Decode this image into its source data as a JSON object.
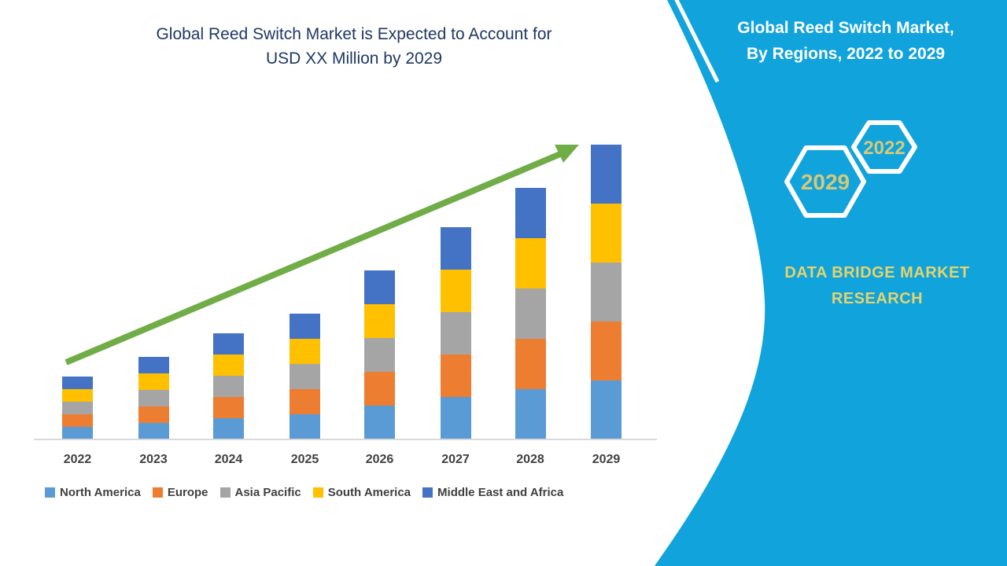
{
  "chart": {
    "title_line1": "Global Reed Switch Market is Expected to Account for",
    "title_line2": "USD XX Million by 2029"
  },
  "chart_data": {
    "type": "bar",
    "stacked": true,
    "title": "Global Reed Switch Market is Expected to Account for USD XX Million by 2029",
    "categories": [
      "2022",
      "2023",
      "2024",
      "2025",
      "2026",
      "2027",
      "2028",
      "2029"
    ],
    "series": [
      {
        "name": "North America",
        "color": "#5B9BD5",
        "values": [
          16,
          21,
          27,
          32,
          43,
          54,
          64,
          75
        ]
      },
      {
        "name": "Europe",
        "color": "#ED7D31",
        "values": [
          16,
          21,
          27,
          32,
          43,
          54,
          64,
          75
        ]
      },
      {
        "name": "Asia Pacific",
        "color": "#A5A5A5",
        "values": [
          16,
          21,
          27,
          32,
          43,
          54,
          64,
          75
        ]
      },
      {
        "name": "South America",
        "color": "#FFC000",
        "values": [
          16,
          21,
          27,
          32,
          43,
          54,
          64,
          75
        ]
      },
      {
        "name": "Middle East and Africa",
        "color": "#4472C4",
        "values": [
          16,
          21,
          27,
          32,
          43,
          54,
          64,
          75
        ]
      }
    ],
    "xlabel": "",
    "ylabel": "",
    "y_axis_shown": false,
    "grid": false,
    "legend_position": "bottom",
    "units": "relative (no value axis shown; chart uses placeholder 'USD XX Million')",
    "annotations": [
      "green upward trend arrow from 2022 bar to 2029 bar"
    ],
    "annotation_color": "#70AD47"
  },
  "sidebar": {
    "title_line1": "Global Reed Switch Market,",
    "title_line2": "By Regions, 2022 to 2029",
    "hexagon_large_label": "2029",
    "hexagon_small_label": "2022",
    "brand_line1": "DATA BRIDGE MARKET",
    "brand_line2": "RESEARCH",
    "colors": {
      "panel": "#10A3DC",
      "hexagon_outline": "#FFFFFF",
      "hexagon_year_text": "#D6C878",
      "brand_text": "#E6D36B"
    }
  }
}
